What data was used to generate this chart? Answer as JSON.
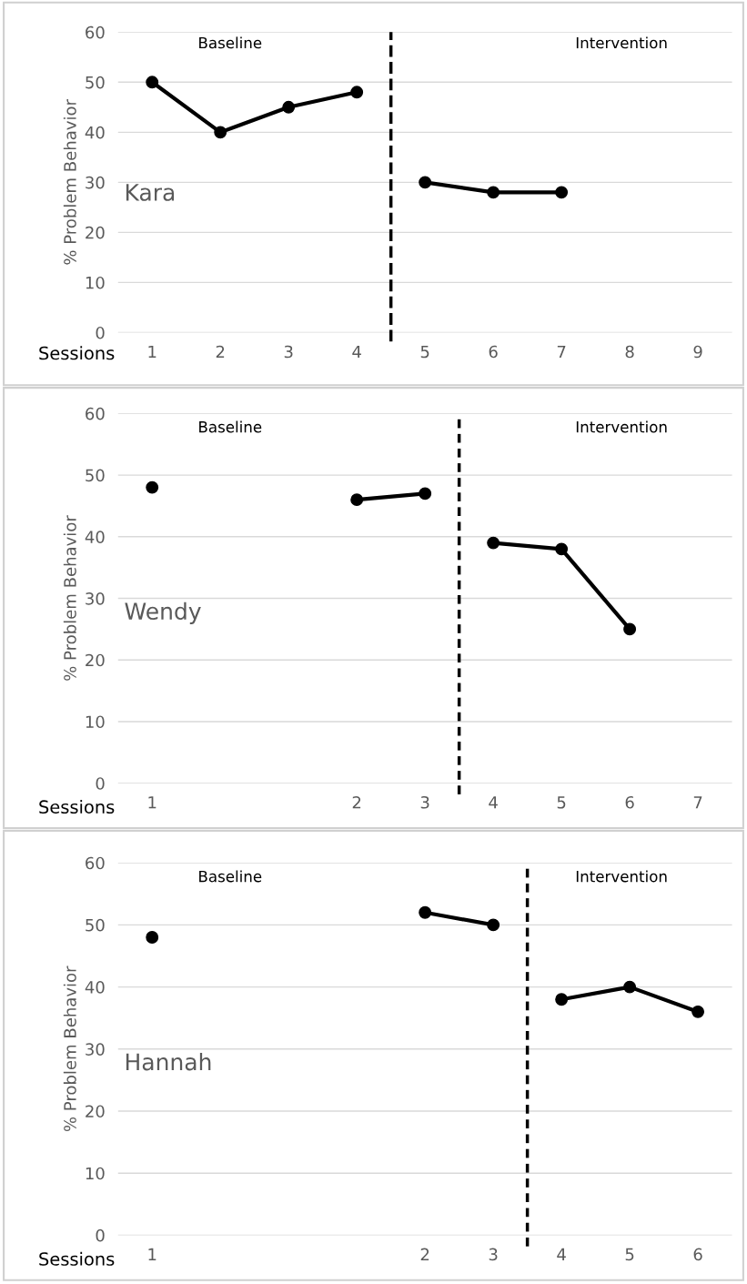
{
  "chart_data": [
    {
      "type": "line",
      "xlabel": "Sessions",
      "ylabel": "% Problem Behavior",
      "x": [
        1,
        2,
        3,
        4,
        5,
        6,
        7
      ],
      "xlim": [
        0.5,
        9.5
      ],
      "xticks": [
        1,
        2,
        3,
        4,
        5,
        6,
        7,
        8,
        9
      ],
      "ref_lines": [
        {
          "axis": "x",
          "value": 4.5,
          "color": "#000000",
          "line_style": "dashed"
        }
      ],
      "series": [
        {
          "color": "#000000",
          "values": [
            50,
            40,
            45,
            48,
            null,
            null,
            null
          ]
        },
        {
          "color": "#000000",
          "values": [
            null,
            null,
            null,
            null,
            30,
            28,
            28
          ]
        }
      ],
      "ylim": [
        0,
        60
      ],
      "yticks": [
        0,
        10,
        20,
        30,
        40,
        50,
        60
      ],
      "annotations": [
        "Baseline",
        "Intervention",
        "Kara"
      ],
      "grid": "y",
      "legend": false,
      "marker": "circle",
      "line_style": "solid"
    },
    {
      "type": "line",
      "xlabel": "Sessions",
      "ylabel": "% Problem Behavior",
      "categories": [
        "1",
        null,
        null,
        "2",
        "3",
        "4",
        "5",
        "6",
        "7"
      ],
      "series": [
        {
          "color": "#000000",
          "values": [
            48,
            null,
            null,
            46,
            47,
            null,
            null,
            null,
            null
          ]
        },
        {
          "color": "#000000",
          "values": [
            null,
            null,
            null,
            null,
            null,
            39,
            38,
            25,
            null
          ]
        }
      ],
      "ylim": [
        0,
        60
      ],
      "yticks": [
        0,
        10,
        20,
        30,
        40,
        50,
        60
      ],
      "annotations": [
        "Baseline",
        "Intervention",
        "Wendy"
      ],
      "grid": "y",
      "legend": false,
      "marker": "circle",
      "line_style": "solid"
    },
    {
      "type": "line",
      "xlabel": "Sessions",
      "ylabel": "% Problem Behavior",
      "categories": [
        "1",
        null,
        null,
        null,
        "2",
        "3",
        "4",
        "5",
        "6"
      ],
      "series": [
        {
          "color": "#000000",
          "values": [
            48,
            null,
            null,
            null,
            52,
            50,
            null,
            null,
            null
          ]
        },
        {
          "color": "#000000",
          "values": [
            null,
            null,
            null,
            null,
            null,
            null,
            38,
            40,
            36
          ]
        }
      ],
      "ylim": [
        0,
        60
      ],
      "yticks": [
        0,
        10,
        20,
        30,
        40,
        50,
        60
      ],
      "annotations": [
        "Baseline",
        "Intervention",
        "Hannah"
      ],
      "grid": "y",
      "legend": false,
      "marker": "circle",
      "line_style": "solid"
    }
  ]
}
